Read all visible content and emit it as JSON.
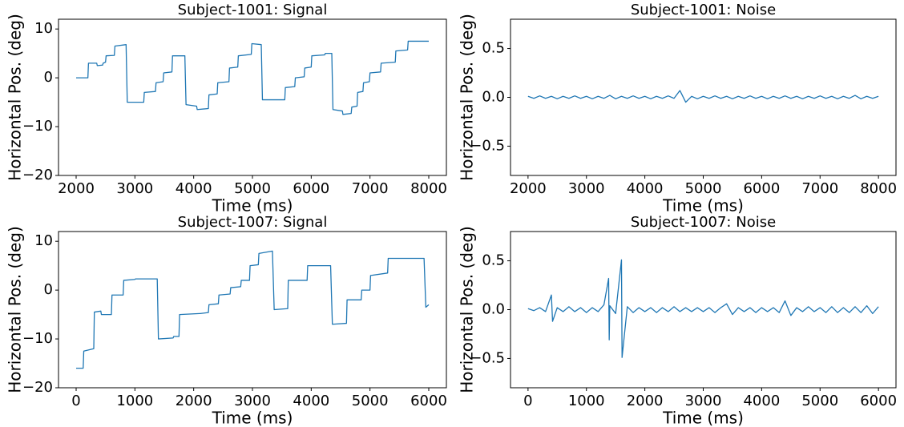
{
  "chart_data": [
    {
      "type": "line",
      "title": "Subject-1001: Signal",
      "xlabel": "Time (ms)",
      "ylabel": "Horizontal Pos. (deg)",
      "x": [
        2000,
        2200,
        2210,
        2350,
        2360,
        2450,
        2460,
        2500,
        2510,
        2650,
        2660,
        2850,
        2870,
        3150,
        3160,
        3350,
        3360,
        3480,
        3490,
        3630,
        3640,
        3850,
        3870,
        4050,
        4060,
        4250,
        4260,
        4400,
        4410,
        4600,
        4610,
        4750,
        4760,
        4980,
        4990,
        5150,
        5170,
        5550,
        5560,
        5720,
        5730,
        5880,
        5890,
        6000,
        6010,
        6230,
        6240,
        6350,
        6370,
        6530,
        6540,
        6680,
        6690,
        6780,
        6790,
        6880,
        6890,
        6990,
        7000,
        7180,
        7190,
        7430,
        7440,
        7640,
        7650,
        8000
      ],
      "series": [
        {
          "color": "#1f77b4",
          "values": [
            0,
            0,
            3,
            3,
            2.5,
            2.6,
            3,
            3.2,
            4.5,
            4.6,
            6.5,
            6.8,
            -5,
            -5,
            -3,
            -2.8,
            -1,
            -0.8,
            1,
            1.2,
            4.5,
            4.5,
            -5.5,
            -5.8,
            -6.5,
            -6.3,
            -3.5,
            -3.3,
            -1,
            -0.8,
            2,
            2.2,
            4.5,
            4.8,
            7,
            6.8,
            -4.5,
            -4.5,
            -2,
            -1.8,
            0,
            0.2,
            2,
            2.2,
            4.5,
            4.7,
            5,
            5,
            -6.5,
            -6.8,
            -7.5,
            -7.3,
            -6,
            -5.8,
            -3,
            -2.8,
            -1,
            -0.8,
            1,
            1.2,
            3,
            3.2,
            5.5,
            5.7,
            7.5,
            7.5
          ]
        }
      ],
      "xlim": [
        1700,
        8300
      ],
      "xticks": [
        2000,
        3000,
        4000,
        5000,
        6000,
        7000,
        8000
      ],
      "ylim": [
        -20,
        12
      ],
      "yticks": [
        {
          "value": -20,
          "label": "−20"
        },
        {
          "value": -10,
          "label": "−10"
        },
        0,
        10
      ]
    },
    {
      "type": "line",
      "title": "Subject-1001: Noise",
      "xlabel": "Time (ms)",
      "ylabel": "Horizontal Pos. (deg)",
      "x": [
        2000,
        2100,
        2200,
        2300,
        2400,
        2500,
        2600,
        2700,
        2800,
        2900,
        3000,
        3100,
        3200,
        3300,
        3400,
        3500,
        3600,
        3700,
        3800,
        3900,
        4000,
        4100,
        4200,
        4300,
        4400,
        4500,
        4600,
        4700,
        4800,
        4900,
        5000,
        5100,
        5200,
        5300,
        5400,
        5500,
        5600,
        5700,
        5800,
        5900,
        6000,
        6100,
        6200,
        6300,
        6400,
        6500,
        6600,
        6700,
        6800,
        6900,
        7000,
        7100,
        7200,
        7300,
        7400,
        7500,
        7600,
        7700,
        7800,
        7900,
        8000
      ],
      "series": [
        {
          "color": "#1f77b4",
          "values": [
            0.01,
            -0.01,
            0.015,
            -0.01,
            0.01,
            -0.015,
            0.01,
            -0.01,
            0.015,
            -0.01,
            0.01,
            -0.015,
            0.01,
            -0.01,
            0.02,
            -0.015,
            0.01,
            -0.01,
            0.015,
            -0.01,
            0.01,
            -0.015,
            0.01,
            -0.01,
            0.015,
            -0.01,
            0.07,
            -0.05,
            0.01,
            -0.015,
            0.01,
            -0.01,
            0.015,
            -0.01,
            0.01,
            -0.015,
            0.01,
            -0.01,
            0.015,
            -0.01,
            0.01,
            -0.015,
            0.01,
            -0.01,
            0.015,
            -0.01,
            0.01,
            -0.015,
            0.01,
            -0.01,
            0.015,
            -0.01,
            0.01,
            -0.015,
            0.01,
            -0.01,
            0.02,
            -0.015,
            0.01,
            -0.01,
            0.01
          ]
        }
      ],
      "xlim": [
        1700,
        8300
      ],
      "xticks": [
        2000,
        3000,
        4000,
        5000,
        6000,
        7000,
        8000
      ],
      "ylim": [
        -0.8,
        0.8
      ],
      "yticks": [
        {
          "value": -0.5,
          "label": "−0.5"
        },
        {
          "value": 0,
          "label": "0.0"
        },
        0.5
      ]
    },
    {
      "type": "line",
      "title": "Subject-1007: Signal",
      "xlabel": "Time (ms)",
      "ylabel": "Horizontal Pos. (deg)",
      "x": [
        0,
        120,
        130,
        300,
        310,
        420,
        430,
        600,
        610,
        800,
        810,
        1000,
        1010,
        1380,
        1400,
        1650,
        1660,
        1750,
        1760,
        2100,
        2110,
        2250,
        2260,
        2420,
        2430,
        2620,
        2630,
        2800,
        2810,
        2950,
        2960,
        3100,
        3110,
        3340,
        3370,
        3600,
        3610,
        3930,
        3940,
        4330,
        4360,
        4600,
        4610,
        4850,
        4860,
        5000,
        5010,
        5300,
        5310,
        5920,
        5950,
        6000
      ],
      "series": [
        {
          "color": "#1f77b4",
          "values": [
            -16,
            -16,
            -12.5,
            -12,
            -4.5,
            -4.3,
            -5,
            -5,
            -1,
            -1,
            2,
            2.2,
            2.3,
            2.3,
            -10,
            -9.8,
            -9.5,
            -9.5,
            -5,
            -4.8,
            -4.8,
            -4.6,
            -3,
            -2.8,
            -1,
            -0.8,
            0.5,
            0.7,
            2,
            2,
            5,
            5.2,
            7.5,
            8,
            -4,
            -3.8,
            2,
            2,
            5,
            5,
            -7,
            -6.8,
            -2,
            -2,
            0,
            0,
            3,
            3.5,
            6.5,
            6.5,
            -3.5,
            -3
          ]
        }
      ],
      "xlim": [
        -300,
        6300
      ],
      "xticks": [
        0,
        1000,
        2000,
        3000,
        4000,
        5000,
        6000
      ],
      "ylim": [
        -20,
        12
      ],
      "yticks": [
        {
          "value": -20,
          "label": "−20"
        },
        {
          "value": -10,
          "label": "−10"
        },
        0,
        10
      ]
    },
    {
      "type": "line",
      "title": "Subject-1007: Noise",
      "xlabel": "Time (ms)",
      "ylabel": "Horizontal Pos. (deg)",
      "x": [
        0,
        100,
        200,
        300,
        400,
        420,
        500,
        600,
        700,
        800,
        900,
        1000,
        1100,
        1200,
        1300,
        1380,
        1390,
        1400,
        1500,
        1600,
        1610,
        1700,
        1800,
        1900,
        2000,
        2100,
        2200,
        2300,
        2400,
        2500,
        2600,
        2700,
        2800,
        2900,
        3000,
        3100,
        3200,
        3300,
        3400,
        3500,
        3600,
        3700,
        3800,
        3900,
        4000,
        4100,
        4200,
        4300,
        4400,
        4500,
        4600,
        4700,
        4800,
        4900,
        5000,
        5100,
        5200,
        5300,
        5400,
        5500,
        5600,
        5700,
        5800,
        5900,
        6000
      ],
      "series": [
        {
          "color": "#1f77b4",
          "values": [
            0.01,
            -0.01,
            0.02,
            -0.02,
            0.15,
            -0.12,
            0.02,
            -0.02,
            0.03,
            -0.02,
            0.02,
            -0.03,
            0.02,
            -0.02,
            0.05,
            0.32,
            -0.31,
            0.04,
            -0.04,
            0.51,
            -0.49,
            0.03,
            -0.03,
            0.02,
            -0.02,
            0.02,
            -0.03,
            0.02,
            -0.02,
            0.03,
            -0.02,
            0.02,
            -0.02,
            0.02,
            -0.02,
            0.02,
            -0.03,
            0.02,
            0.06,
            -0.05,
            0.02,
            -0.02,
            0.02,
            -0.03,
            0.02,
            -0.02,
            0.02,
            -0.03,
            0.09,
            -0.06,
            0.02,
            -0.02,
            0.03,
            -0.02,
            0.02,
            -0.03,
            0.03,
            -0.03,
            0.02,
            -0.03,
            0.03,
            -0.03,
            0.04,
            -0.04,
            0.03
          ]
        }
      ],
      "xlim": [
        -300,
        6300
      ],
      "xticks": [
        0,
        1000,
        2000,
        3000,
        4000,
        5000,
        6000
      ],
      "ylim": [
        -0.8,
        0.8
      ],
      "yticks": [
        {
          "value": -0.5,
          "label": "−0.5"
        },
        {
          "value": 0,
          "label": "0.0"
        },
        0.5
      ]
    }
  ]
}
